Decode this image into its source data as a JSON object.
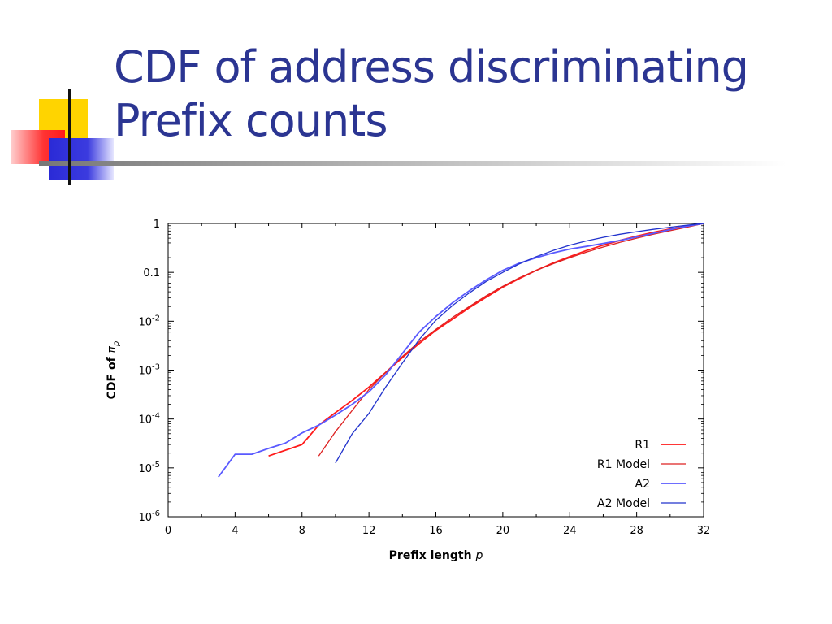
{
  "slide": {
    "title_line1": "CDF of address discriminating",
    "title_line2": "Prefix counts",
    "title_color": "#2b3592"
  },
  "chart_data": {
    "type": "line",
    "title": "",
    "xlabel": "Prefix length",
    "xlabel_var": "p",
    "ylabel": "CDF of",
    "ylabel_var": "π",
    "ylabel_sub": "p",
    "xlim": [
      0,
      32
    ],
    "ylim": [
      1e-06,
      1
    ],
    "yscale": "log",
    "xticks": [
      0,
      4,
      8,
      12,
      16,
      20,
      24,
      28,
      32
    ],
    "yticks": [
      {
        "value": 1e-06,
        "base": "10",
        "exp": "-6"
      },
      {
        "value": 1e-05,
        "base": "10",
        "exp": "-5"
      },
      {
        "value": 0.0001,
        "base": "10",
        "exp": "-4"
      },
      {
        "value": 0.001,
        "base": "10",
        "exp": "-3"
      },
      {
        "value": 0.01,
        "base": "10",
        "exp": "-2"
      },
      {
        "value": 0.1,
        "base": "0.1",
        "exp": ""
      },
      {
        "value": 1,
        "base": "1",
        "exp": ""
      }
    ],
    "grid": false,
    "legend_position": "bottom-right",
    "series": [
      {
        "name": "R1",
        "color": "#ff1a1a",
        "width": 1.8,
        "x": [
          6,
          8,
          9,
          10,
          11,
          12,
          13,
          14,
          15,
          16,
          17,
          18,
          19,
          20,
          21,
          22,
          23,
          24,
          25,
          26,
          27,
          28,
          29,
          30,
          31,
          32
        ],
        "y": [
          1.75e-05,
          3e-05,
          7.5e-05,
          0.000135,
          0.00024,
          0.00045,
          0.0009,
          0.0018,
          0.0035,
          0.0065,
          0.011,
          0.019,
          0.031,
          0.05,
          0.075,
          0.11,
          0.155,
          0.21,
          0.28,
          0.36,
          0.45,
          0.55,
          0.66,
          0.77,
          0.88,
          1.0
        ]
      },
      {
        "name": "R1 Model",
        "color": "#dd2222",
        "width": 1.3,
        "x": [
          9,
          10,
          11,
          12,
          13,
          14,
          15,
          16,
          17,
          18,
          19,
          20,
          21,
          22,
          23,
          24,
          25,
          26,
          27,
          28,
          29,
          30,
          31,
          32
        ],
        "y": [
          1.75e-05,
          5.5e-05,
          0.00015,
          0.0004,
          0.0009,
          0.0019,
          0.0038,
          0.0068,
          0.012,
          0.02,
          0.033,
          0.052,
          0.078,
          0.11,
          0.15,
          0.2,
          0.26,
          0.33,
          0.41,
          0.5,
          0.6,
          0.71,
          0.84,
          1.0
        ]
      },
      {
        "name": "A2",
        "color": "#5a5aff",
        "width": 1.8,
        "x": [
          3,
          4,
          5,
          6,
          7,
          8,
          9,
          10,
          11,
          12,
          13,
          14,
          15,
          16,
          17,
          18,
          19,
          20,
          21,
          22,
          23,
          24,
          25,
          26,
          27,
          28,
          29,
          30,
          31,
          32
        ],
        "y": [
          6.5e-06,
          1.9e-05,
          1.9e-05,
          2.5e-05,
          3.2e-05,
          5.2e-05,
          7.5e-05,
          0.00012,
          0.0002,
          0.00036,
          0.0008,
          0.0022,
          0.006,
          0.0125,
          0.024,
          0.042,
          0.07,
          0.11,
          0.155,
          0.2,
          0.25,
          0.3,
          0.34,
          0.39,
          0.45,
          0.53,
          0.63,
          0.75,
          0.88,
          1.0
        ]
      },
      {
        "name": "A2 Model",
        "color": "#2233cc",
        "width": 1.3,
        "x": [
          10,
          11,
          12,
          13,
          14,
          15,
          16,
          17,
          18,
          19,
          20,
          21,
          22,
          23,
          24,
          25,
          26,
          27,
          28,
          29,
          30,
          31,
          32
        ],
        "y": [
          1.25e-05,
          5e-05,
          0.00013,
          0.00045,
          0.0014,
          0.0042,
          0.0105,
          0.021,
          0.038,
          0.065,
          0.1,
          0.15,
          0.21,
          0.28,
          0.36,
          0.44,
          0.52,
          0.6,
          0.68,
          0.76,
          0.84,
          0.92,
          1.0
        ]
      }
    ]
  }
}
